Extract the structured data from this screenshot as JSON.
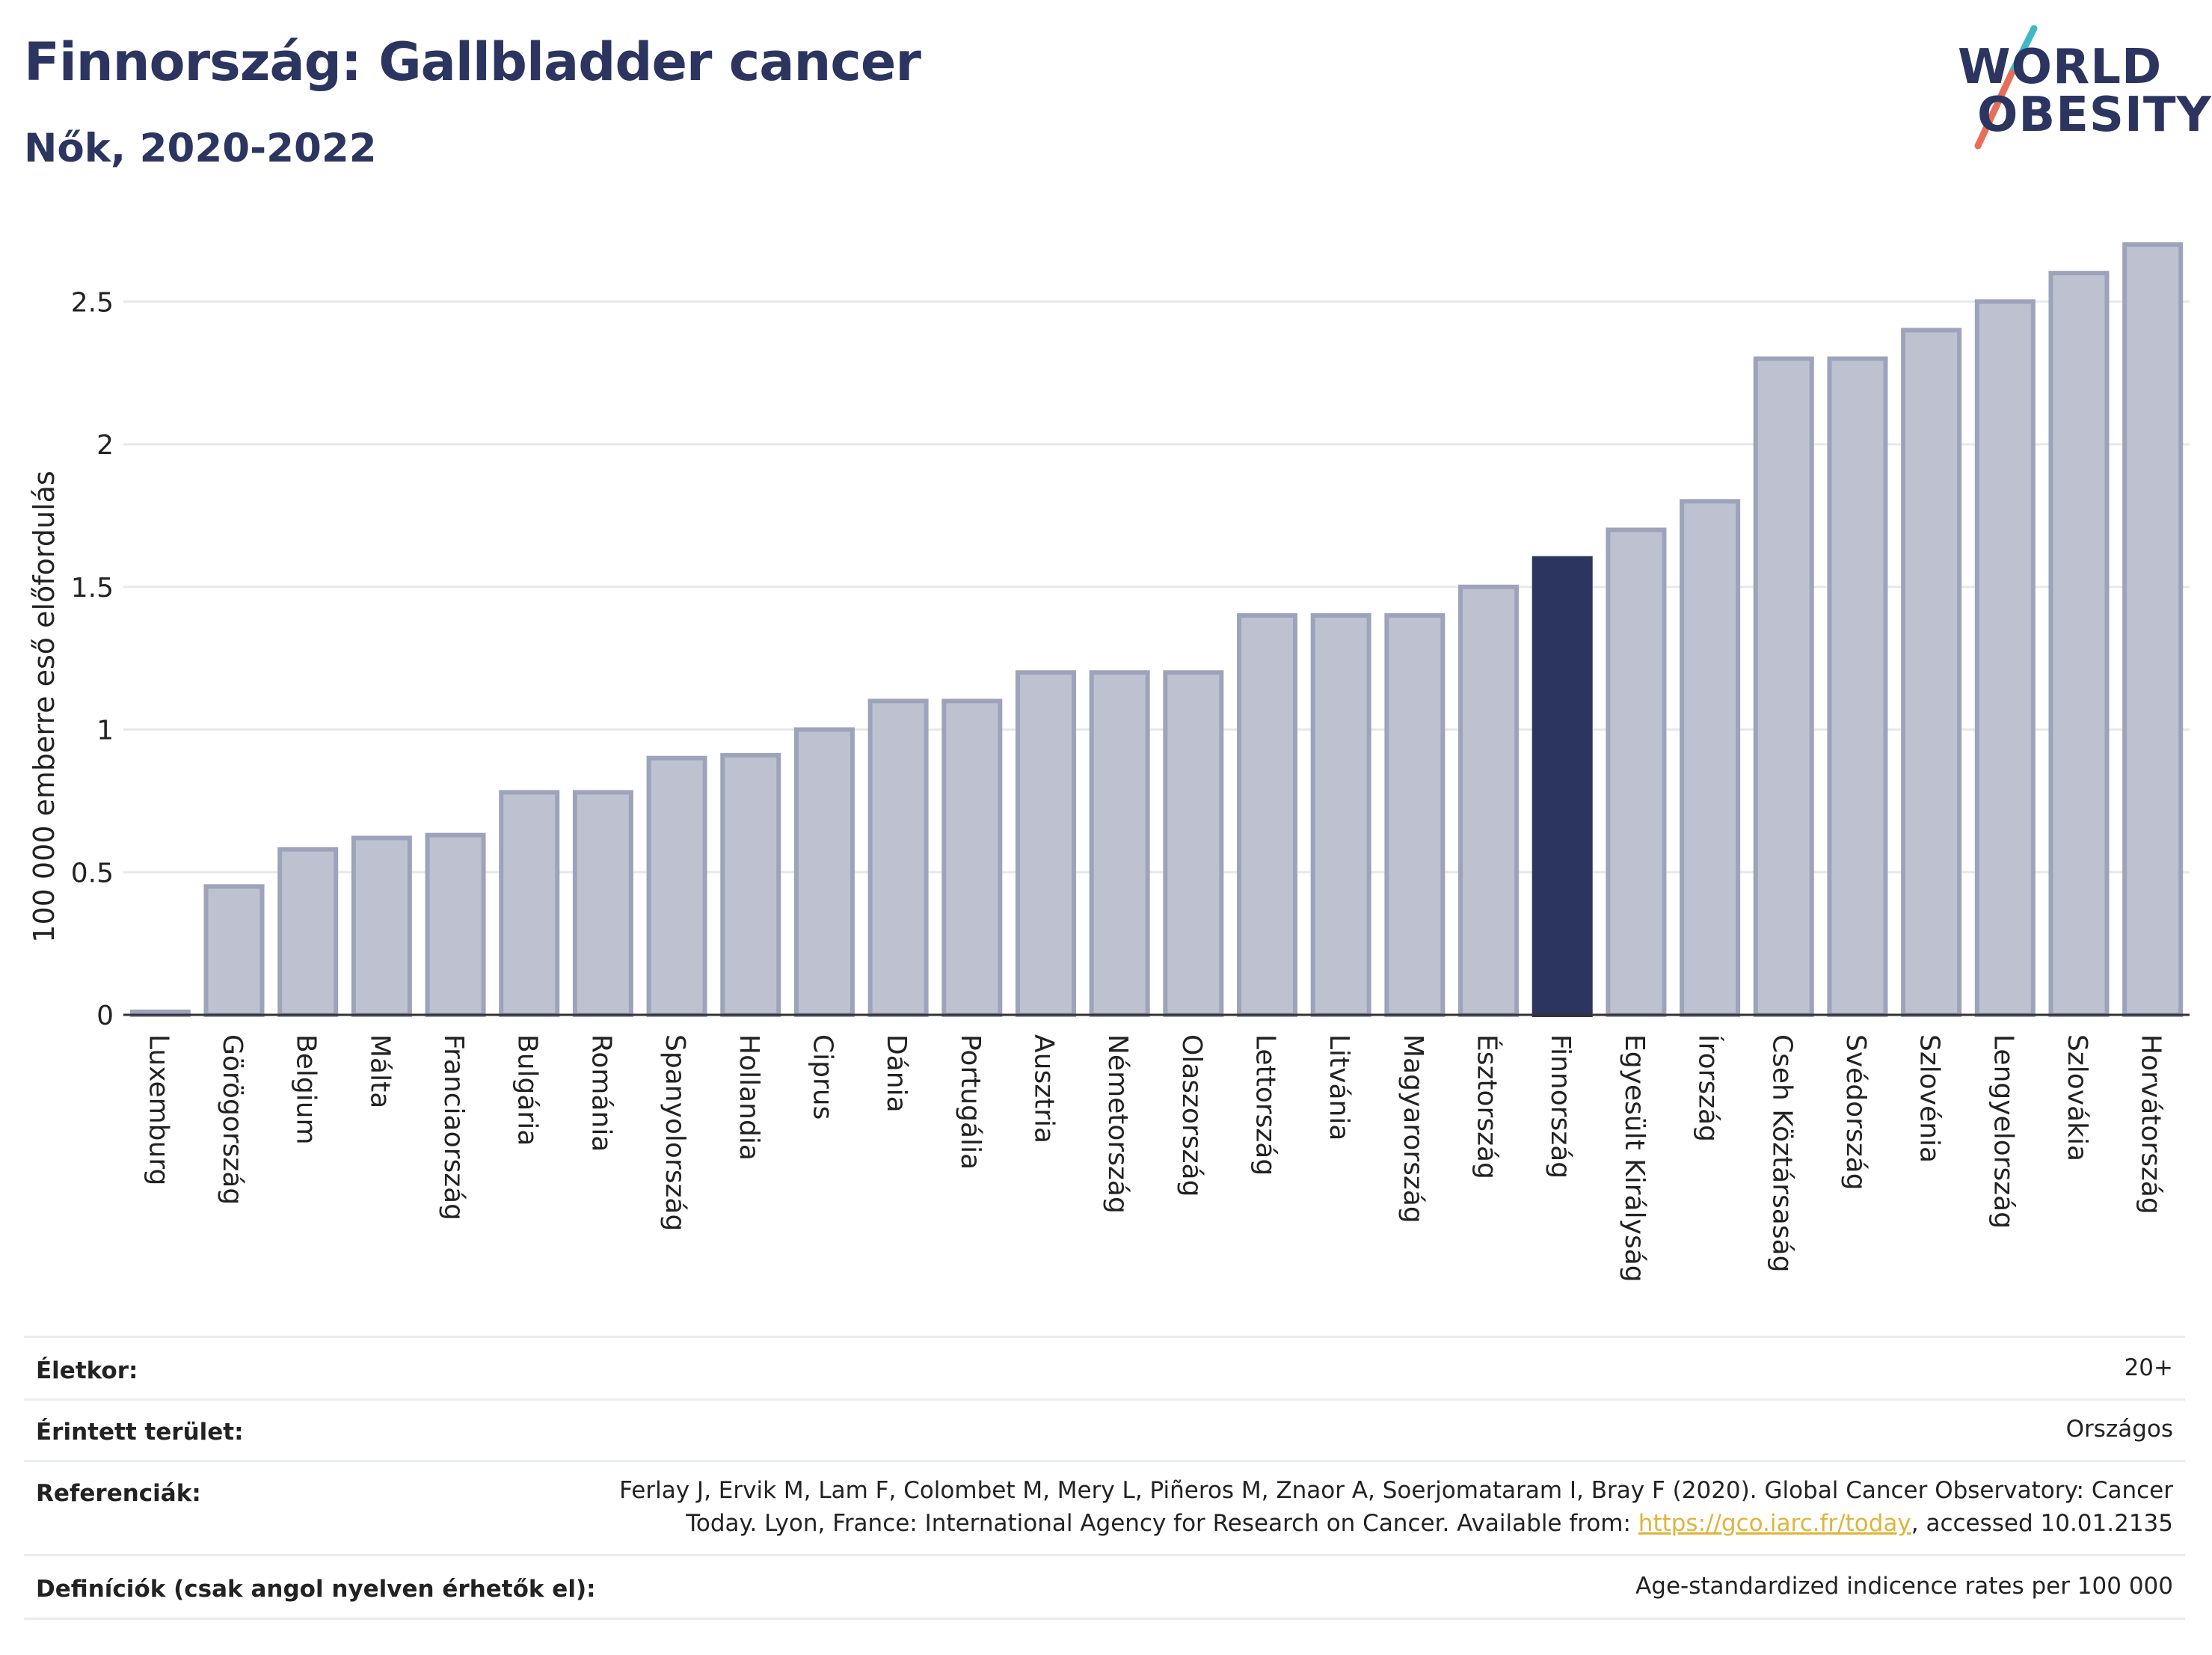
{
  "header": {
    "title": "Finnország: Gallbladder cancer",
    "subtitle": "Nők, 2020-2022"
  },
  "logo": {
    "line1": "WORLD",
    "line2": "OBESITY",
    "slash_colors": [
      "#3fb9c4",
      "#e86e5a"
    ]
  },
  "colors": {
    "bar_default": "#bec2d0",
    "bar_border": "#9da3bb",
    "bar_highlight": "#2b3560",
    "text_dark": "#2b3560",
    "gridline": "#e6e8ec"
  },
  "chart_data": {
    "type": "bar",
    "ylabel": "100 000 emberre eső előfordulás",
    "ylim": [
      0,
      2.7
    ],
    "yticks": [
      {
        "value": 0,
        "label": "0"
      },
      {
        "value": 0.5,
        "label": "0.5"
      },
      {
        "value": 1,
        "label": "1"
      },
      {
        "value": 1.5,
        "label": "1.5"
      },
      {
        "value": 2,
        "label": "2"
      },
      {
        "value": 2.5,
        "label": "2.5"
      }
    ],
    "grid": true,
    "highlight": "Finnország",
    "categories": [
      "Luxemburg",
      "Görögország",
      "Belgium",
      "Málta",
      "Franciaország",
      "Bulgária",
      "Románia",
      "Spanyolország",
      "Hollandia",
      "Ciprus",
      "Dánia",
      "Portugália",
      "Ausztria",
      "Németország",
      "Olaszország",
      "Lettország",
      "Litvánia",
      "Magyarország",
      "Észtország",
      "Finnország",
      "Egyesült Királyság",
      "Írország",
      "Cseh Köztársaság",
      "Svédország",
      "Szlovénia",
      "Lengyelország",
      "Szlovákia",
      "Horvátország"
    ],
    "values": [
      0.01,
      0.45,
      0.58,
      0.62,
      0.63,
      0.78,
      0.78,
      0.9,
      0.91,
      1.0,
      1.1,
      1.1,
      1.2,
      1.2,
      1.2,
      1.4,
      1.4,
      1.4,
      1.5,
      1.6,
      1.7,
      1.8,
      2.3,
      2.3,
      2.4,
      2.5,
      2.6,
      2.7
    ]
  },
  "info": {
    "age_label": "Életkor:",
    "age_value": "20+",
    "area_label": "Érintett terület:",
    "area_value": "Országos",
    "ref_label": "Referenciák:",
    "ref_line1": "Ferlay J, Ervik M, Lam F, Colombet M, Mery L, Piñeros M, Znaor A, Soerjomataram I, Bray F (2020). Global Cancer Observatory: Cancer",
    "ref_line2_pre": "Today. Lyon, France: International Agency for Research on Cancer. Available from: ",
    "ref_link": "https://gco.iarc.fr/today",
    "ref_line2_post": ", accessed 10.01.2135",
    "def_label": "Definíciók (csak angol nyelven érhetők el):",
    "def_value": "Age-standardized indicence rates per 100 000"
  }
}
